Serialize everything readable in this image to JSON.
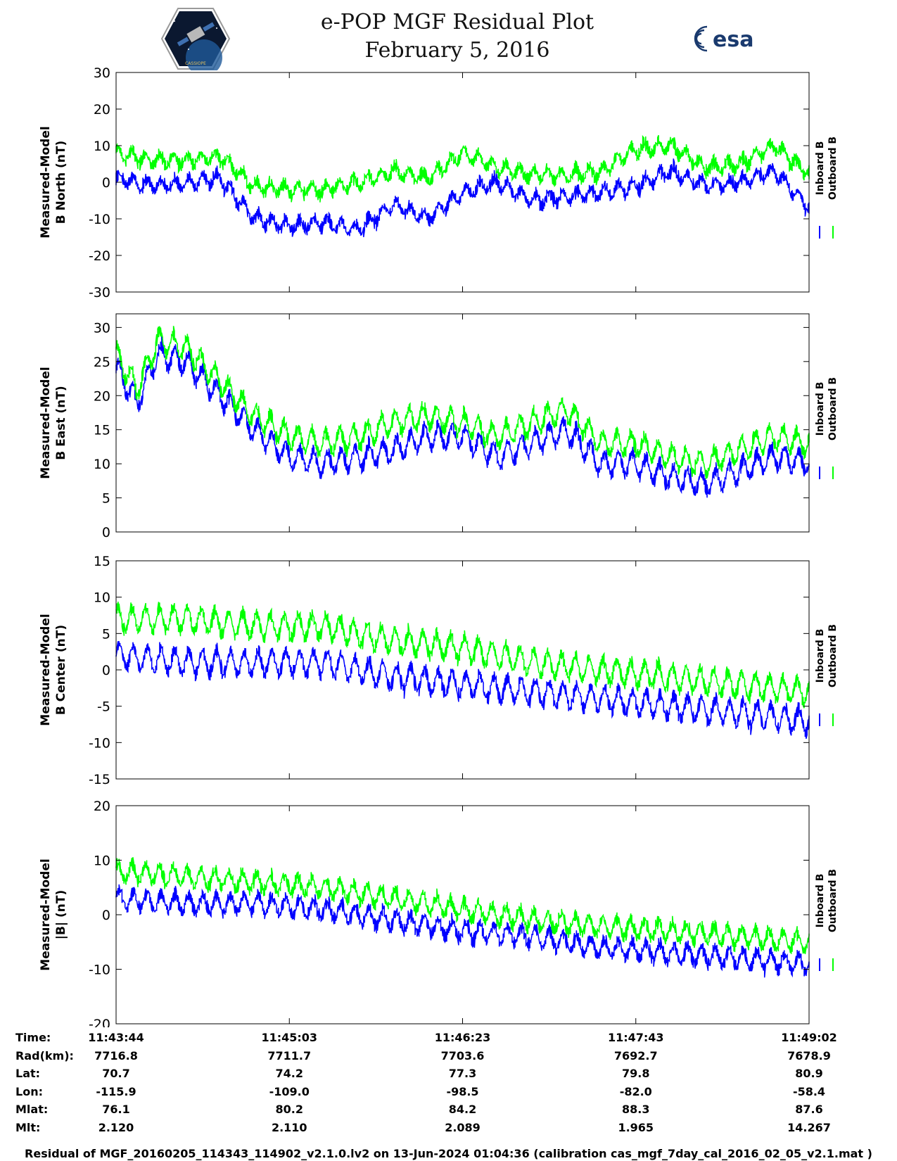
{
  "header": {
    "title_line1": "e-POP MGF Residual Plot",
    "title_line2": "February 5, 2016",
    "logo_left_icon": "cassiope-mission-badge",
    "logo_right_icon": "esa-logo",
    "logo_right_text": "esa",
    "logo_left_text": "CASSIOPE"
  },
  "colors": {
    "inboard": "#0000ff",
    "outboard": "#00ff00",
    "axis": "#000000"
  },
  "chart_data": [
    {
      "type": "line",
      "ylabel_line1": "Measured-Model",
      "ylabel_line2": "B North (nT)",
      "ylim": [
        -30,
        30
      ],
      "yticks": [
        30,
        20,
        10,
        0,
        -10,
        -20,
        -30
      ],
      "xtick_labels": [
        "11:43:44",
        "11:45:03",
        "11:46:23",
        "11:47:43",
        "11:49:02"
      ],
      "legend_position": "right",
      "series": [
        {
          "name": "Inboard B",
          "color": "#0000ff",
          "x": [
            0,
            0.05,
            0.1,
            0.15,
            0.2,
            0.25,
            0.3,
            0.35,
            0.4,
            0.45,
            0.5,
            0.55,
            0.6,
            0.65,
            0.7,
            0.75,
            0.8,
            0.85,
            0.9,
            0.95,
            1
          ],
          "y": [
            1,
            -1,
            0,
            1,
            -10,
            -12,
            -11,
            -13,
            -6,
            -10,
            -3,
            0,
            -5,
            -4,
            -3,
            -1,
            3,
            -1,
            0,
            3,
            -7
          ]
        },
        {
          "name": "Outboard B",
          "color": "#00ff00",
          "x": [
            0,
            0.05,
            0.1,
            0.15,
            0.2,
            0.25,
            0.3,
            0.35,
            0.4,
            0.45,
            0.5,
            0.55,
            0.6,
            0.65,
            0.7,
            0.75,
            0.8,
            0.85,
            0.9,
            0.95,
            1
          ],
          "y": [
            8,
            6,
            6,
            7,
            -1,
            -2,
            -2,
            0,
            3,
            1,
            8,
            4,
            2,
            2,
            3,
            9,
            10,
            4,
            5,
            10,
            2
          ]
        }
      ]
    },
    {
      "type": "line",
      "ylabel_line1": "Measured-Model",
      "ylabel_line2": "B East (nT)",
      "ylim": [
        0,
        32
      ],
      "yticks": [
        30,
        25,
        20,
        15,
        10,
        5,
        0
      ],
      "xtick_labels": [
        "11:43:44",
        "11:45:03",
        "11:46:23",
        "11:47:43",
        "11:49:02"
      ],
      "legend_position": "right",
      "series": [
        {
          "name": "Inboard B",
          "color": "#0000ff",
          "x": [
            0,
            0.03,
            0.06,
            0.1,
            0.15,
            0.2,
            0.25,
            0.3,
            0.35,
            0.4,
            0.45,
            0.5,
            0.55,
            0.6,
            0.65,
            0.7,
            0.75,
            0.8,
            0.85,
            0.9,
            0.95,
            1
          ],
          "y": [
            24,
            19,
            26,
            25,
            20,
            15,
            11,
            10,
            11,
            12,
            14,
            14,
            11,
            13,
            15,
            10,
            10,
            8,
            7,
            9,
            11,
            10
          ]
        },
        {
          "name": "Outboard B",
          "color": "#00ff00",
          "x": [
            0,
            0.03,
            0.06,
            0.1,
            0.15,
            0.2,
            0.25,
            0.3,
            0.35,
            0.4,
            0.45,
            0.5,
            0.55,
            0.6,
            0.65,
            0.7,
            0.75,
            0.8,
            0.85,
            0.9,
            0.95,
            1
          ],
          "y": [
            26,
            21,
            28,
            27,
            22,
            17,
            14,
            13,
            14,
            16,
            17,
            16,
            14,
            16,
            18,
            13,
            13,
            11,
            10,
            12,
            14,
            13
          ]
        }
      ]
    },
    {
      "type": "line",
      "ylabel_line1": "Measured-Model",
      "ylabel_line2": "B Center (nT)",
      "ylim": [
        -15,
        15
      ],
      "yticks": [
        15,
        10,
        5,
        0,
        -5,
        -10,
        -15
      ],
      "xtick_labels": [
        "11:43:44",
        "11:45:03",
        "11:46:23",
        "11:47:43",
        "11:49:02"
      ],
      "legend_position": "right",
      "series": [
        {
          "name": "Inboard B",
          "color": "#0000ff",
          "x": [
            0,
            0.1,
            0.2,
            0.3,
            0.35,
            0.4,
            0.5,
            0.6,
            0.7,
            0.8,
            0.9,
            1
          ],
          "y": [
            2,
            1,
            1,
            1,
            0,
            -1,
            -2,
            -3,
            -4,
            -5,
            -6,
            -7
          ]
        },
        {
          "name": "Outboard B",
          "color": "#00ff00",
          "x": [
            0,
            0.1,
            0.2,
            0.3,
            0.35,
            0.4,
            0.5,
            0.6,
            0.7,
            0.8,
            0.9,
            1
          ],
          "y": [
            7,
            7,
            6,
            6,
            5,
            4,
            3,
            1,
            0,
            -1,
            -2,
            -3
          ]
        }
      ]
    },
    {
      "type": "line",
      "ylabel_line1": "Measured-Model",
      "ylabel_line2": "|B| (nT)",
      "ylim": [
        -20,
        20
      ],
      "yticks": [
        20,
        10,
        0,
        -10,
        -20
      ],
      "xtick_labels": [
        "11:43:44",
        "11:45:03",
        "11:46:23",
        "11:47:43",
        "11:49:02"
      ],
      "legend_position": "right",
      "series": [
        {
          "name": "Inboard B",
          "color": "#0000ff",
          "x": [
            0,
            0.1,
            0.2,
            0.3,
            0.35,
            0.4,
            0.5,
            0.6,
            0.7,
            0.8,
            0.9,
            1
          ],
          "y": [
            3,
            2,
            2,
            1,
            0,
            -1,
            -3,
            -4,
            -6,
            -7,
            -8,
            -9
          ]
        },
        {
          "name": "Outboard B",
          "color": "#00ff00",
          "x": [
            0,
            0.1,
            0.2,
            0.3,
            0.35,
            0.4,
            0.5,
            0.6,
            0.7,
            0.8,
            0.9,
            1
          ],
          "y": [
            8,
            7,
            6,
            5,
            4,
            3,
            1,
            -1,
            -2,
            -3,
            -4,
            -5
          ]
        }
      ]
    }
  ],
  "ephemeris": {
    "labels": [
      "Time:",
      "Rad(km):",
      "Lat:",
      "Lon:",
      "Mlat:",
      "Mlt:"
    ],
    "columns": [
      [
        "11:43:44",
        "7716.8",
        "70.7",
        "-115.9",
        "76.1",
        "2.120"
      ],
      [
        "11:45:03",
        "7711.7",
        "74.2",
        "-109.0",
        "80.2",
        "2.110"
      ],
      [
        "11:46:23",
        "7703.6",
        "77.3",
        "-98.5",
        "84.2",
        "2.089"
      ],
      [
        "11:47:43",
        "7692.7",
        "79.8",
        "-82.0",
        "88.3",
        "1.965"
      ],
      [
        "11:49:02",
        "7678.9",
        "80.9",
        "-58.4",
        "87.6",
        "14.267"
      ]
    ]
  },
  "footer": "Residual of MGF_20160205_114343_114902_v2.1.0.lv2 on 13-Jun-2024 01:04:36 (calibration cas_mgf_7day_cal_2016_02_05_v2.1.mat )"
}
